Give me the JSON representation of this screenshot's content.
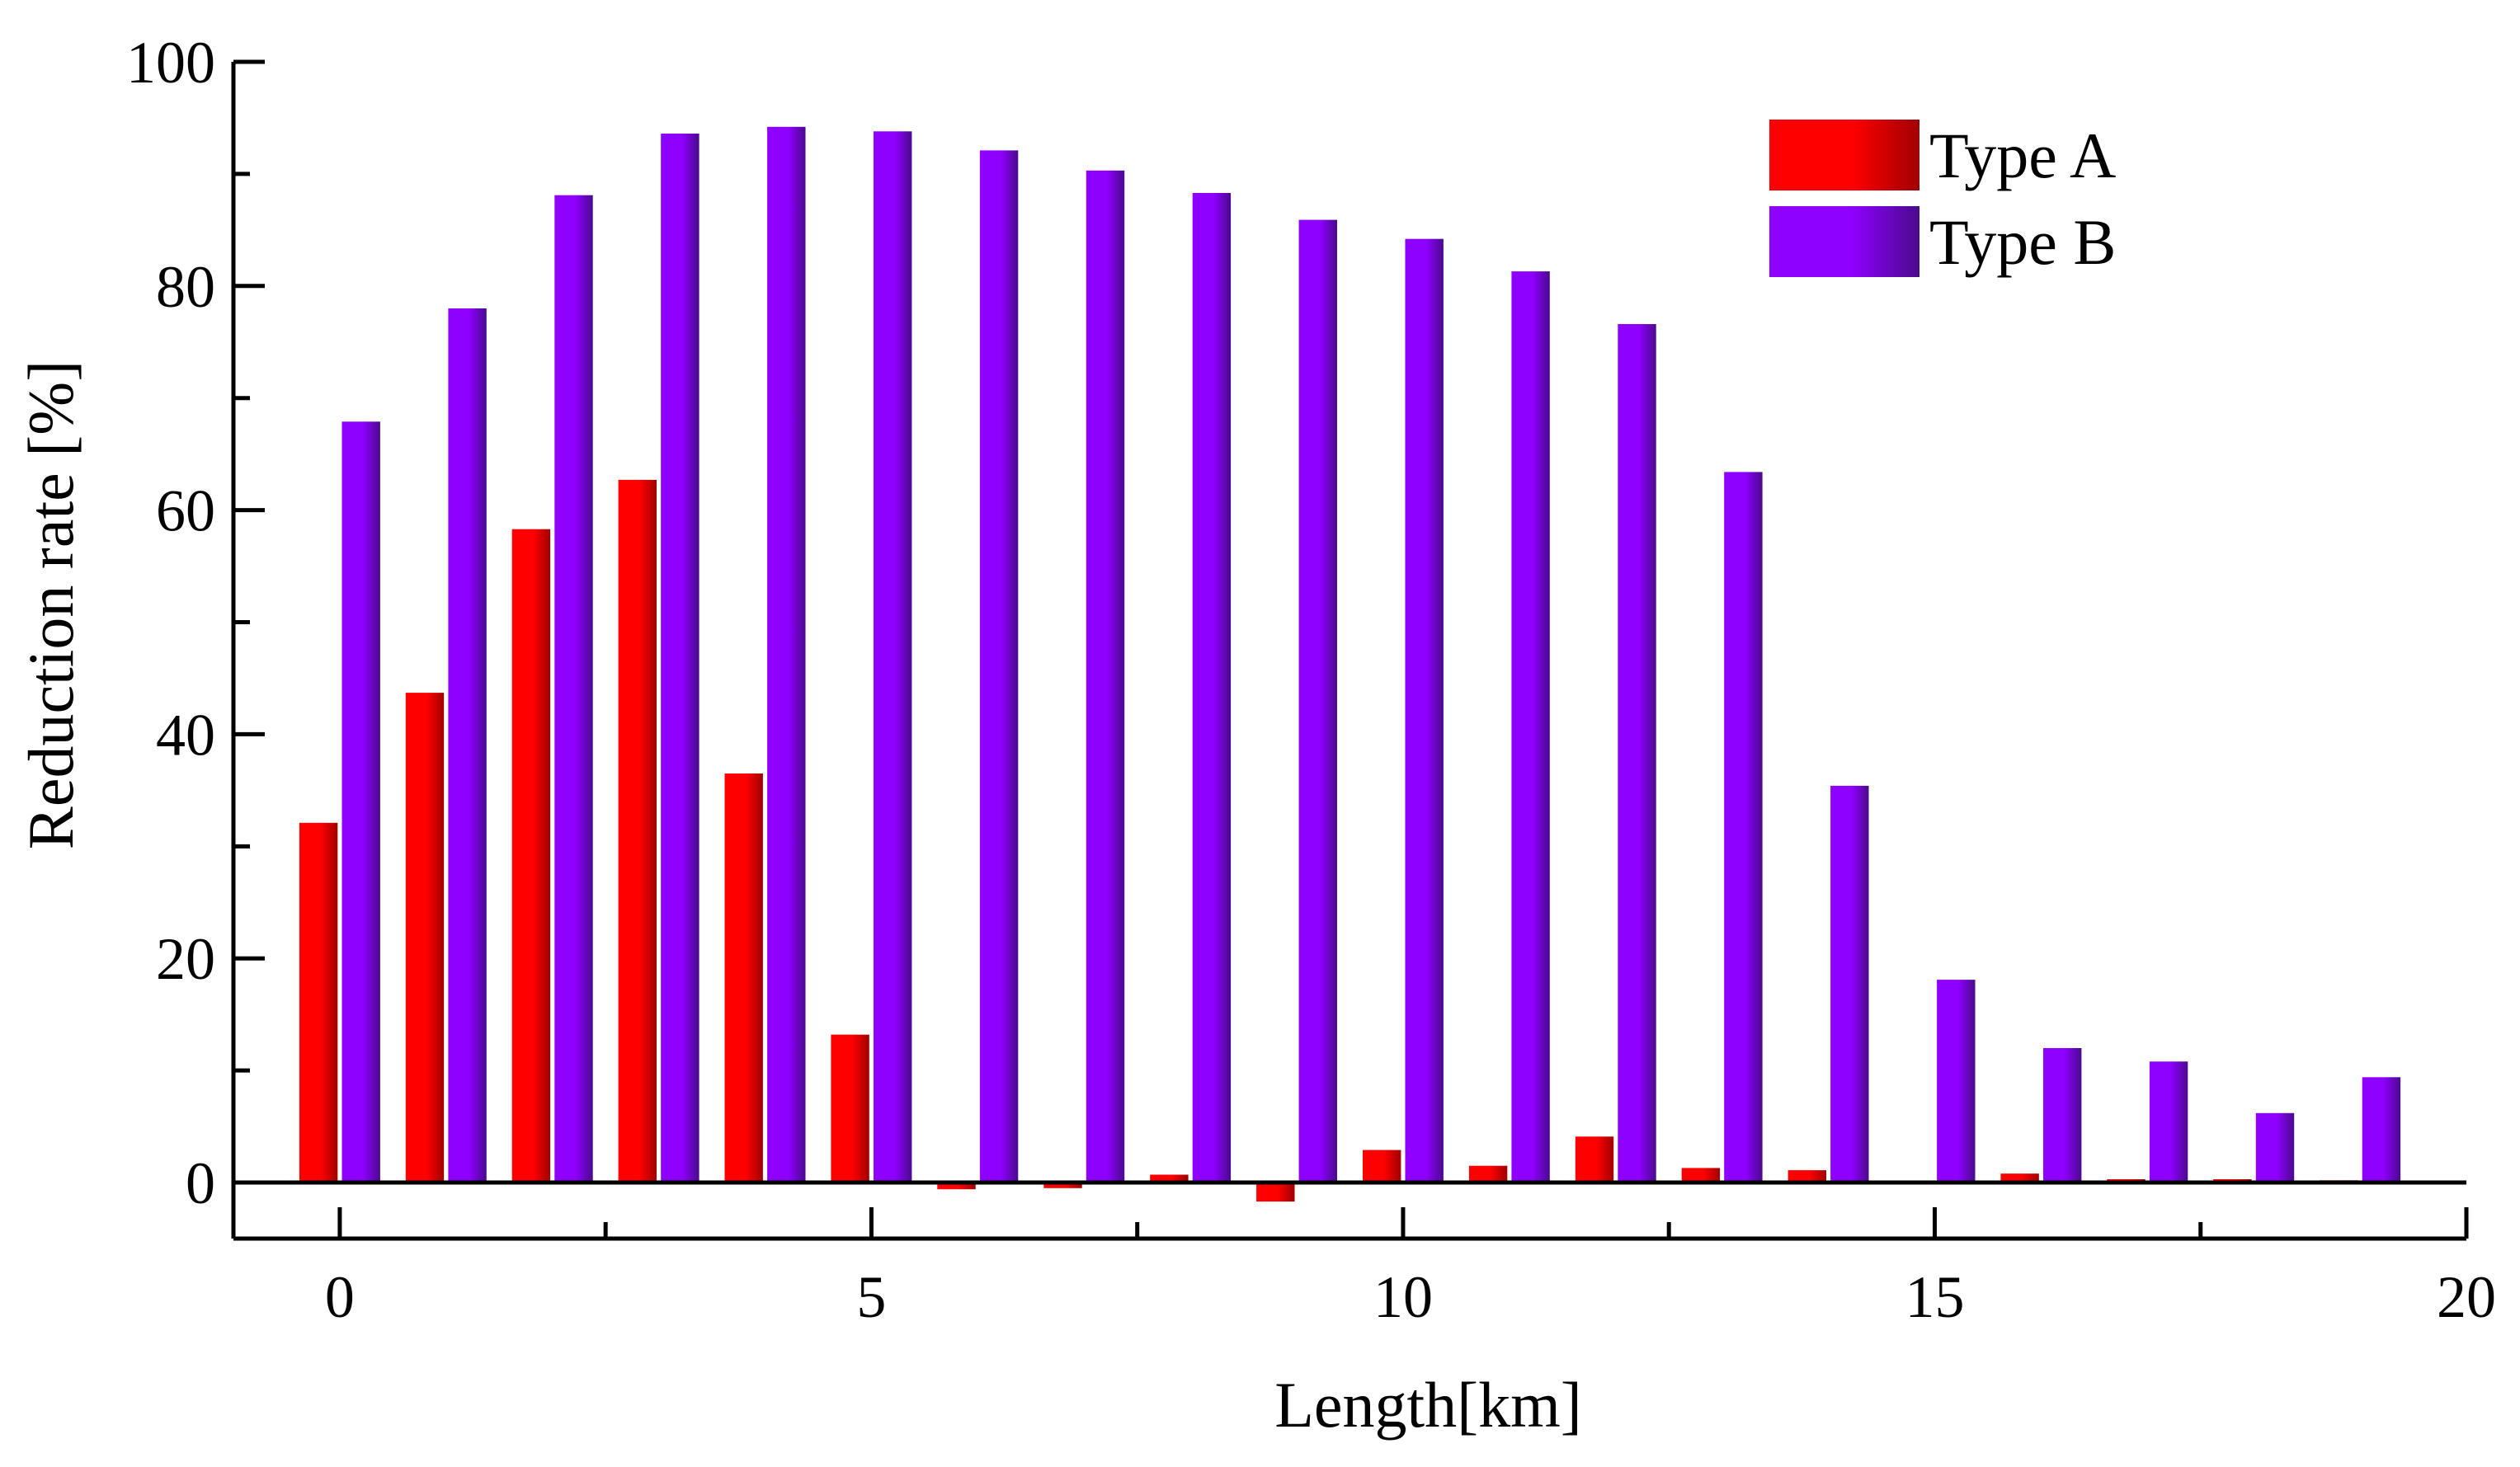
{
  "chart_data": {
    "type": "bar",
    "title": "",
    "xlabel": "Length[km]",
    "ylabel": "Reduction rate [%]",
    "xlim": [
      -1,
      20
    ],
    "ylim": [
      -5,
      100
    ],
    "x_ticks": [
      0,
      5,
      10,
      15,
      20
    ],
    "y_ticks": [
      0,
      20,
      40,
      60,
      80,
      100
    ],
    "x": [
      0,
      1,
      2,
      3,
      4,
      5,
      6,
      7,
      8,
      9,
      10,
      11,
      12,
      13,
      14,
      15,
      16,
      17,
      18,
      19
    ],
    "series": [
      {
        "name": "Type A",
        "color": "#ff0000",
        "color_dark": "#a00000",
        "values": [
          32.1,
          43.7,
          58.3,
          62.7,
          36.5,
          13.2,
          -0.6,
          -0.5,
          0.7,
          -1.7,
          2.9,
          1.5,
          4.1,
          1.3,
          1.1,
          0.1,
          0.8,
          0.3,
          0.3,
          0.2
        ]
      },
      {
        "name": "Type B",
        "color": "#8e00ff",
        "color_dark": "#4a0a8c",
        "values": [
          67.9,
          78.0,
          88.1,
          93.6,
          94.2,
          93.8,
          92.1,
          90.3,
          88.3,
          85.9,
          84.2,
          81.3,
          76.6,
          63.4,
          35.4,
          18.1,
          12.0,
          10.8,
          6.2,
          9.4
        ]
      }
    ],
    "legend": [
      "Type A",
      "Type B"
    ],
    "legend_position": "top-right",
    "grid": false
  }
}
